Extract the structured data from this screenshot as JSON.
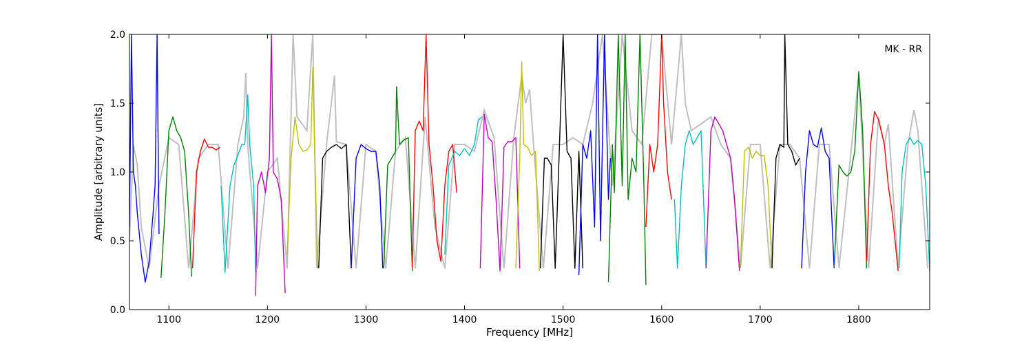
{
  "chart_data": {
    "type": "line",
    "title": "",
    "xlabel": "Frequency [MHz]",
    "ylabel": "Amplitude [arbitrary units]",
    "xlim": [
      1060,
      1872
    ],
    "ylim": [
      0.0,
      2.0
    ],
    "xticks": [
      1100,
      1200,
      1300,
      1400,
      1500,
      1600,
      1700,
      1800
    ],
    "xtick_labels": [
      "1100",
      "1200",
      "1300",
      "1400",
      "1500",
      "1600",
      "1700",
      "1800"
    ],
    "yticks": [
      0.0,
      0.5,
      1.0,
      1.5,
      2.0
    ],
    "ytick_labels": [
      "0.0",
      "0.5",
      "1.0",
      "1.5",
      "2.0"
    ],
    "grid": false,
    "annotation": "MK - RR",
    "background_series_color": "#bfbfbf",
    "bands": [
      {
        "color": "#0000ff",
        "x": [
          1060,
          1062,
          1064,
          1066,
          1068,
          1072,
          1076,
          1080,
          1084,
          1086,
          1088,
          1090
        ],
        "y": [
          0.6,
          2.0,
          1.0,
          0.9,
          0.7,
          0.4,
          0.2,
          0.35,
          0.7,
          0.9,
          2.0,
          0.55
        ]
      },
      {
        "color": "#008000",
        "x": [
          1092,
          1096,
          1100,
          1104,
          1108,
          1112,
          1116,
          1120,
          1123
        ],
        "y": [
          0.23,
          0.7,
          1.3,
          1.4,
          1.3,
          1.25,
          1.15,
          0.7,
          0.24
        ]
      },
      {
        "color": "#ff0000",
        "x": [
          1124,
          1128,
          1132,
          1136,
          1140,
          1144,
          1148,
          1152
        ],
        "y": [
          0.3,
          1.0,
          1.15,
          1.24,
          1.18,
          1.18,
          1.16,
          1.18
        ]
      },
      {
        "color": "#00bfbf",
        "x": [
          1153,
          1157,
          1162,
          1166,
          1170,
          1174,
          1177,
          1180,
          1182,
          1186,
          1188
        ],
        "y": [
          0.9,
          0.27,
          0.9,
          1.05,
          1.12,
          1.2,
          1.2,
          1.56,
          1.2,
          0.9,
          0.27
        ]
      },
      {
        "color": "#bf00bf",
        "x": [
          1188,
          1190,
          1194,
          1198,
          1202,
          1204,
          1206,
          1210,
          1214,
          1218
        ],
        "y": [
          0.1,
          0.9,
          1.0,
          0.85,
          1.1,
          2.0,
          1.0,
          0.95,
          0.8,
          0.12
        ]
      },
      {
        "color": "#bfbf00",
        "x": [
          1220,
          1224,
          1228,
          1232,
          1236,
          1240,
          1244,
          1246,
          1248,
          1251
        ],
        "y": [
          0.4,
          1.1,
          1.4,
          1.2,
          1.15,
          1.16,
          1.2,
          1.76,
          1.15,
          0.3
        ]
      },
      {
        "color": "#000000",
        "x": [
          1252,
          1256,
          1260,
          1265,
          1270,
          1275,
          1280,
          1285
        ],
        "y": [
          0.3,
          1.1,
          1.15,
          1.18,
          1.2,
          1.17,
          1.2,
          0.3
        ]
      },
      {
        "color": "#0000ff",
        "x": [
          1285,
          1290,
          1295,
          1300,
          1305,
          1310,
          1314,
          1317
        ],
        "y": [
          0.3,
          1.1,
          1.2,
          1.17,
          1.15,
          1.15,
          0.9,
          0.3
        ]
      },
      {
        "color": "#008000",
        "x": [
          1318,
          1322,
          1326,
          1330,
          1331,
          1334,
          1338,
          1343,
          1347
        ],
        "y": [
          0.3,
          1.05,
          1.1,
          1.15,
          1.62,
          1.2,
          1.23,
          1.25,
          0.28
        ]
      },
      {
        "color": "#ff0000",
        "x": [
          1347,
          1350,
          1354,
          1358,
          1361,
          1364,
          1368,
          1372,
          1376,
          1380,
          1384,
          1388,
          1392
        ],
        "y": [
          0.3,
          1.3,
          1.37,
          1.3,
          2.0,
          1.2,
          0.9,
          0.5,
          0.35,
          0.9,
          1.15,
          1.2,
          0.85
        ]
      },
      {
        "color": "#00bfbf",
        "x": [
          1380,
          1384,
          1390,
          1395,
          1400,
          1405,
          1410,
          1414,
          1418
        ],
        "y": [
          0.4,
          1.05,
          1.15,
          1.12,
          1.17,
          1.12,
          1.2,
          1.38,
          1.4
        ]
      },
      {
        "color": "#bf00bf",
        "x": [
          1416,
          1420,
          1424,
          1428,
          1432,
          1436,
          1440,
          1444,
          1448,
          1452,
          1456
        ],
        "y": [
          0.3,
          1.42,
          1.25,
          1.22,
          0.8,
          0.28,
          1.18,
          1.22,
          1.22,
          1.25,
          0.3
        ]
      },
      {
        "color": "#bfbf00",
        "x": [
          1452,
          1456,
          1458,
          1460,
          1464,
          1468,
          1472,
          1476
        ],
        "y": [
          0.3,
          1.1,
          1.8,
          1.2,
          1.18,
          1.12,
          1.15,
          0.28
        ]
      },
      {
        "color": "#000000",
        "x": [
          1477,
          1481,
          1484,
          1488,
          1492,
          1496,
          1500,
          1504,
          1508,
          1512,
          1516,
          1520
        ],
        "y": [
          0.3,
          1.1,
          1.1,
          1.05,
          0.3,
          1.12,
          2.0,
          1.15,
          1.1,
          0.3,
          1.15,
          0.3
        ]
      },
      {
        "color": "#0000ff",
        "x": [
          1516,
          1520,
          1524,
          1528,
          1532,
          1535,
          1538,
          1542,
          1546,
          1548
        ],
        "y": [
          0.25,
          1.2,
          1.1,
          1.3,
          0.6,
          2.0,
          0.5,
          2.0,
          0.8,
          1.1
        ]
      },
      {
        "color": "#008000",
        "x": [
          1546,
          1550,
          1552,
          1556,
          1560,
          1563,
          1566,
          1570,
          1574,
          1578,
          1582,
          1584
        ],
        "y": [
          0.2,
          1.2,
          0.85,
          2.0,
          0.9,
          2.0,
          0.8,
          1.1,
          1.0,
          2.0,
          0.9,
          0.18
        ]
      },
      {
        "color": "#ff0000",
        "x": [
          1584,
          1588,
          1592,
          1596,
          1600,
          1602,
          1606,
          1610
        ],
        "y": [
          0.6,
          1.2,
          1.0,
          1.2,
          2.0,
          1.5,
          1.0,
          0.8
        ]
      },
      {
        "color": "#00bfbf",
        "x": [
          1613,
          1616,
          1620,
          1624,
          1628,
          1632,
          1636,
          1640,
          1645
        ],
        "y": [
          0.8,
          0.3,
          0.9,
          1.2,
          1.3,
          1.2,
          1.25,
          1.3,
          0.3
        ]
      },
      {
        "color": "#bf00bf",
        "x": [
          1645,
          1650,
          1654,
          1658,
          1662,
          1666,
          1670,
          1674,
          1679
        ],
        "y": [
          0.3,
          1.3,
          1.4,
          1.35,
          1.3,
          1.2,
          1.1,
          0.8,
          0.28
        ]
      },
      {
        "color": "#bfbf00",
        "x": [
          1680,
          1684,
          1688,
          1692,
          1696,
          1700,
          1704,
          1708,
          1712
        ],
        "y": [
          0.3,
          1.15,
          1.18,
          1.1,
          1.15,
          1.12,
          1.12,
          0.9,
          0.3
        ]
      },
      {
        "color": "#000000",
        "x": [
          1712,
          1716,
          1720,
          1724,
          1725,
          1728,
          1732,
          1736,
          1740
        ],
        "y": [
          0.3,
          1.1,
          1.2,
          1.18,
          2.0,
          1.2,
          1.15,
          1.05,
          1.1
        ]
      },
      {
        "color": "#0000ff",
        "x": [
          1742,
          1746,
          1750,
          1754,
          1758,
          1762,
          1766,
          1770,
          1775
        ],
        "y": [
          0.3,
          1.0,
          1.3,
          1.2,
          1.18,
          1.32,
          1.15,
          1.1,
          0.3
        ]
      },
      {
        "color": "#008000",
        "x": [
          1775,
          1780,
          1784,
          1788,
          1792,
          1796,
          1800,
          1804,
          1808
        ],
        "y": [
          0.3,
          1.05,
          1.0,
          0.97,
          1.0,
          1.15,
          1.73,
          1.3,
          0.3
        ]
      },
      {
        "color": "#ff0000",
        "x": [
          1808,
          1812,
          1816,
          1820,
          1826,
          1830,
          1834,
          1840
        ],
        "y": [
          0.35,
          1.2,
          1.44,
          1.38,
          1.2,
          0.9,
          0.7,
          0.28
        ]
      },
      {
        "color": "#00bfbf",
        "x": [
          1841,
          1844,
          1848,
          1852,
          1856,
          1860,
          1864,
          1868,
          1872
        ],
        "y": [
          0.3,
          1.0,
          1.2,
          1.25,
          1.2,
          1.23,
          1.2,
          0.9,
          0.28
        ]
      }
    ],
    "background": {
      "x": [
        1060,
        1064,
        1068,
        1072,
        1080,
        1090,
        1100,
        1110,
        1120,
        1130,
        1140,
        1150,
        1160,
        1170,
        1176,
        1178,
        1180,
        1190,
        1200,
        1210,
        1220,
        1226,
        1230,
        1240,
        1246,
        1250,
        1260,
        1268,
        1270,
        1280,
        1290,
        1300,
        1310,
        1320,
        1330,
        1340,
        1350,
        1360,
        1370,
        1380,
        1390,
        1400,
        1410,
        1420,
        1430,
        1440,
        1450,
        1458,
        1462,
        1466,
        1470,
        1480,
        1490,
        1500,
        1510,
        1520,
        1530,
        1540,
        1550,
        1560,
        1570,
        1580,
        1590,
        1600,
        1610,
        1620,
        1624,
        1630,
        1640,
        1650,
        1660,
        1670,
        1680,
        1690,
        1700,
        1710,
        1720,
        1730,
        1740,
        1750,
        1760,
        1770,
        1780,
        1790,
        1800,
        1810,
        1820,
        1826,
        1830,
        1840,
        1850,
        1856,
        1860,
        1870
      ],
      "y": [
        0.5,
        1.2,
        1.05,
        0.6,
        0.3,
        0.9,
        1.25,
        1.2,
        0.3,
        1.1,
        1.2,
        1.2,
        0.3,
        1.2,
        1.4,
        1.72,
        1.2,
        0.3,
        1.0,
        1.1,
        0.3,
        2.0,
        1.4,
        1.3,
        2.0,
        0.3,
        1.2,
        1.7,
        1.22,
        1.2,
        0.3,
        1.2,
        1.15,
        0.3,
        1.15,
        1.25,
        0.3,
        1.4,
        0.6,
        0.3,
        1.2,
        1.2,
        1.15,
        1.45,
        1.25,
        0.3,
        1.25,
        1.7,
        1.5,
        1.6,
        1.2,
        0.3,
        1.2,
        1.2,
        1.25,
        1.2,
        1.5,
        2.0,
        0.9,
        2.0,
        1.3,
        1.2,
        2.0,
        2.0,
        1.2,
        2.0,
        1.5,
        1.3,
        1.35,
        1.4,
        1.2,
        1.1,
        0.3,
        1.2,
        1.2,
        0.3,
        1.2,
        1.2,
        1.1,
        0.3,
        1.2,
        1.2,
        0.3,
        1.0,
        1.7,
        0.3,
        1.4,
        1.2,
        1.35,
        0.3,
        1.2,
        1.45,
        1.3,
        0.3
      ]
    }
  }
}
